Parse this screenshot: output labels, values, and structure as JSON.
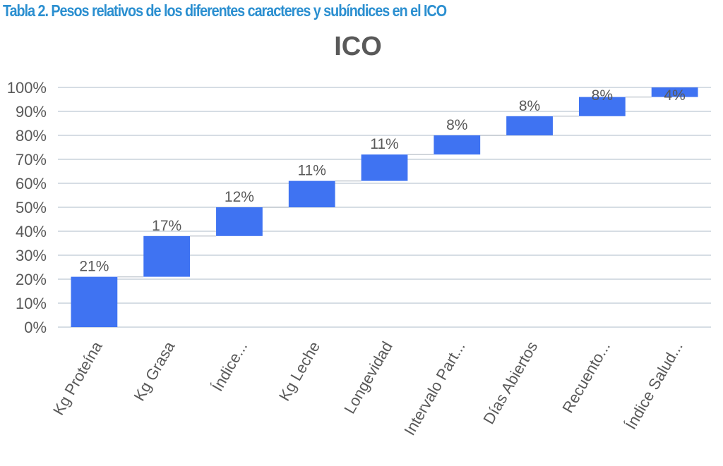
{
  "caption": "Tabla 2. Pesos relativos de los diferentes caracteres y subíndices en el ICO",
  "chart_data": {
    "type": "bar",
    "subtype": "waterfall",
    "title": "ICO",
    "categories": [
      "Kg Proteína",
      "Kg Grasa",
      "Índice...",
      "Kg Leche",
      "Longevidad",
      "Intervalo Part...",
      "Días Abiertos",
      "Recuento...",
      "Índice Salud..."
    ],
    "values": [
      21,
      17,
      12,
      11,
      11,
      8,
      8,
      8,
      4
    ],
    "data_labels": [
      "21%",
      "17%",
      "12%",
      "11%",
      "11%",
      "8%",
      "8%",
      "8%",
      "4%"
    ],
    "y_ticks": [
      "0%",
      "10%",
      "20%",
      "30%",
      "40%",
      "50%",
      "60%",
      "70%",
      "80%",
      "90%",
      "100%"
    ],
    "ylim": [
      0,
      100
    ],
    "grid": true,
    "legend": "none",
    "bar_color": "#3f73f2",
    "grid_color": "#d6dde4",
    "text_color": "#595959",
    "caption_color": "#2b8fd0"
  }
}
